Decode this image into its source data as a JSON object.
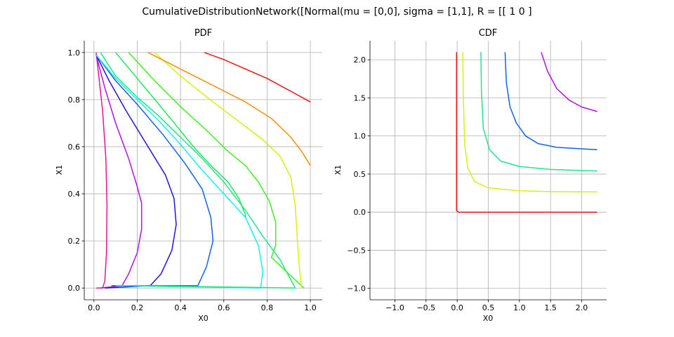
{
  "figure": {
    "title": "CumulativeDistributionNetwork([Normal(mu = [0,0], sigma = [1,1], R = [[ 1 0 ]"
  },
  "chart_data": [
    {
      "type": "line",
      "subtitle": "contour",
      "title": "PDF",
      "xlabel": "X0",
      "ylabel": "X1",
      "xlim": [
        -0.045,
        1.055
      ],
      "ylim": [
        -0.05,
        1.05
      ],
      "xticks": [
        "0.0",
        "0.2",
        "0.4",
        "0.6",
        "0.8",
        "1.0"
      ],
      "yticks": [
        "0.0",
        "0.2",
        "0.4",
        "0.6",
        "0.8",
        "1.0"
      ],
      "grid": true,
      "series": [
        {
          "color": "#e6149c",
          "points": [
            [
              0.01,
              1.0
            ],
            [
              0.02,
              0.92
            ],
            [
              0.04,
              0.75
            ],
            [
              0.055,
              0.55
            ],
            [
              0.06,
              0.35
            ],
            [
              0.058,
              0.15
            ],
            [
              0.05,
              0.03
            ],
            [
              0.04,
              0.0
            ],
            [
              0.01,
              0.0
            ]
          ]
        },
        {
          "color": "#b012e8",
          "points": [
            [
              0.01,
              0.99
            ],
            [
              0.05,
              0.85
            ],
            [
              0.1,
              0.7
            ],
            [
              0.16,
              0.55
            ],
            [
              0.2,
              0.43
            ],
            [
              0.22,
              0.36
            ],
            [
              0.22,
              0.25
            ],
            [
              0.2,
              0.15
            ],
            [
              0.16,
              0.06
            ],
            [
              0.13,
              0.01
            ],
            [
              0.03,
              0.0
            ]
          ]
        },
        {
          "color": "#2410e6",
          "points": [
            [
              0.01,
              0.99
            ],
            [
              0.07,
              0.88
            ],
            [
              0.15,
              0.75
            ],
            [
              0.25,
              0.6
            ],
            [
              0.33,
              0.48
            ],
            [
              0.37,
              0.38
            ],
            [
              0.38,
              0.27
            ],
            [
              0.36,
              0.16
            ],
            [
              0.31,
              0.06
            ],
            [
              0.26,
              0.01
            ],
            [
              0.05,
              0.0
            ]
          ]
        },
        {
          "color": "#0f63f0",
          "points": [
            [
              0.01,
              0.99
            ],
            [
              0.1,
              0.88
            ],
            [
              0.2,
              0.78
            ],
            [
              0.32,
              0.65
            ],
            [
              0.42,
              0.53
            ],
            [
              0.5,
              0.42
            ],
            [
              0.54,
              0.3
            ],
            [
              0.55,
              0.2
            ],
            [
              0.52,
              0.09
            ],
            [
              0.48,
              0.01
            ],
            [
              0.08,
              0.01
            ]
          ]
        },
        {
          "color": "#14f0f0",
          "points": [
            [
              0.01,
              0.99
            ],
            [
              0.1,
              0.89
            ],
            [
              0.2,
              0.8
            ],
            [
              0.3,
              0.71
            ],
            [
              0.4,
              0.61
            ],
            [
              0.5,
              0.5
            ],
            [
              0.6,
              0.4
            ],
            [
              0.7,
              0.3
            ],
            [
              0.76,
              0.18
            ],
            [
              0.78,
              0.07
            ],
            [
              0.77,
              0.0
            ],
            [
              0.1,
              0.01
            ]
          ]
        },
        {
          "color": "#1fe68c",
          "points": [
            [
              0.03,
              1.0
            ],
            [
              0.1,
              0.9
            ],
            [
              0.2,
              0.81
            ],
            [
              0.3,
              0.73
            ],
            [
              0.4,
              0.64
            ],
            [
              0.5,
              0.55
            ],
            [
              0.6,
              0.45
            ],
            [
              0.7,
              0.33
            ],
            [
              0.78,
              0.22
            ],
            [
              0.86,
              0.12
            ],
            [
              0.93,
              0.0
            ],
            [
              0.2,
              0.01
            ]
          ]
        },
        {
          "color": "#1fe65a",
          "points": [
            [
              0.1,
              1.0
            ],
            [
              0.2,
              0.89
            ],
            [
              0.3,
              0.78
            ],
            [
              0.38,
              0.69
            ],
            [
              0.46,
              0.6
            ],
            [
              0.54,
              0.52
            ],
            [
              0.62,
              0.45
            ],
            [
              0.67,
              0.38
            ],
            [
              0.7,
              0.31
            ],
            [
              0.7,
              0.3
            ]
          ]
        },
        {
          "color": "#40f020",
          "points": [
            [
              0.16,
              1.0
            ],
            [
              0.28,
              0.88
            ],
            [
              0.4,
              0.77
            ],
            [
              0.52,
              0.67
            ],
            [
              0.62,
              0.58
            ],
            [
              0.7,
              0.52
            ],
            [
              0.76,
              0.45
            ],
            [
              0.81,
              0.37
            ],
            [
              0.84,
              0.28
            ],
            [
              0.84,
              0.18
            ],
            [
              0.82,
              0.13
            ],
            [
              0.9,
              0.06
            ],
            [
              0.97,
              0.0
            ]
          ]
        },
        {
          "color": "#d7f010",
          "points": [
            [
              0.28,
              1.0
            ],
            [
              0.4,
              0.9
            ],
            [
              0.55,
              0.79
            ],
            [
              0.68,
              0.7
            ],
            [
              0.78,
              0.63
            ],
            [
              0.86,
              0.56
            ],
            [
              0.91,
              0.47
            ],
            [
              0.93,
              0.35
            ],
            [
              0.94,
              0.2
            ],
            [
              0.95,
              0.08
            ],
            [
              0.96,
              0.0
            ]
          ]
        },
        {
          "color": "#ff8c0a",
          "points": [
            [
              0.25,
              1.0
            ],
            [
              0.4,
              0.93
            ],
            [
              0.55,
              0.86
            ],
            [
              0.7,
              0.79
            ],
            [
              0.82,
              0.72
            ],
            [
              0.91,
              0.64
            ],
            [
              0.96,
              0.58
            ],
            [
              1.0,
              0.52
            ]
          ]
        },
        {
          "color": "#f01414",
          "points": [
            [
              0.51,
              1.0
            ],
            [
              0.6,
              0.97
            ],
            [
              0.7,
              0.93
            ],
            [
              0.8,
              0.89
            ],
            [
              0.9,
              0.84
            ],
            [
              1.0,
              0.79
            ]
          ]
        }
      ]
    },
    {
      "type": "line",
      "subtitle": "contour",
      "title": "CDF",
      "xlabel": "X0",
      "ylabel": "X1",
      "xlim": [
        -1.4,
        2.4
      ],
      "ylim": [
        -1.15,
        2.25
      ],
      "xticks": [
        "−1.0",
        "−0.5",
        "0.0",
        "0.5",
        "1.0",
        "1.5",
        "2.0"
      ],
      "yticks": [
        "−1.0",
        "−0.5",
        "0.0",
        "0.5",
        "1.0",
        "1.5",
        "2.0"
      ],
      "grid": true,
      "series": [
        {
          "color": "#f01414",
          "points": [
            [
              -0.01,
              2.1
            ],
            [
              -0.01,
              0.02
            ],
            [
              0.02,
              0.0
            ],
            [
              2.25,
              0.0
            ]
          ]
        },
        {
          "color": "#d7f010",
          "points": [
            [
              0.09,
              2.1
            ],
            [
              0.1,
              1.5
            ],
            [
              0.12,
              0.9
            ],
            [
              0.17,
              0.58
            ],
            [
              0.28,
              0.4
            ],
            [
              0.5,
              0.32
            ],
            [
              1.0,
              0.28
            ],
            [
              1.5,
              0.27
            ],
            [
              2.25,
              0.265
            ]
          ]
        },
        {
          "color": "#1fe68c",
          "points": [
            [
              0.38,
              2.1
            ],
            [
              0.39,
              1.6
            ],
            [
              0.42,
              1.1
            ],
            [
              0.52,
              0.82
            ],
            [
              0.7,
              0.67
            ],
            [
              1.0,
              0.6
            ],
            [
              1.5,
              0.56
            ],
            [
              2.25,
              0.54
            ]
          ]
        },
        {
          "color": "#0f63f0",
          "points": [
            [
              0.77,
              2.1
            ],
            [
              0.79,
              1.7
            ],
            [
              0.85,
              1.38
            ],
            [
              0.95,
              1.17
            ],
            [
              1.1,
              1.0
            ],
            [
              1.3,
              0.9
            ],
            [
              1.6,
              0.85
            ],
            [
              2.25,
              0.82
            ]
          ]
        },
        {
          "color": "#b012e8",
          "points": [
            [
              1.35,
              2.1
            ],
            [
              1.45,
              1.85
            ],
            [
              1.6,
              1.62
            ],
            [
              1.8,
              1.47
            ],
            [
              2.0,
              1.38
            ],
            [
              2.25,
              1.32
            ]
          ]
        }
      ]
    }
  ]
}
